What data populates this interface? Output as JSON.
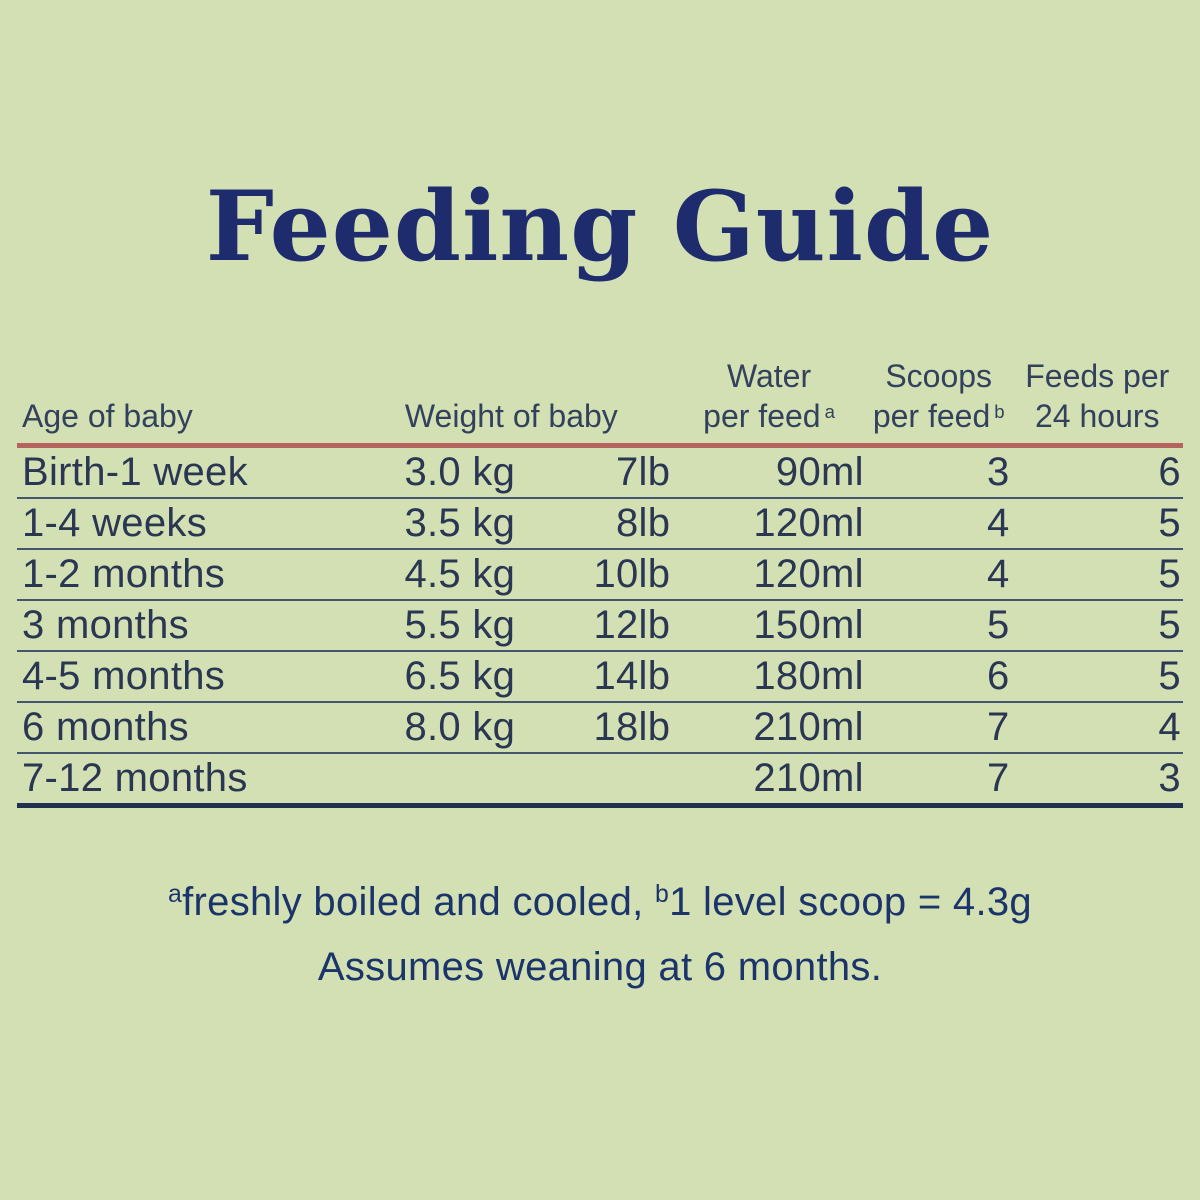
{
  "title": "Feeding Guide",
  "colors": {
    "background": "#d3e0b4",
    "title_navy": "#1e2c6e",
    "header_slate": "#33415c",
    "cell_navy": "#2b3752",
    "rule_red": "#b4635f",
    "row_line": "#45556e",
    "table_edge": "#20304e",
    "footnote_navy": "#1b356b"
  },
  "table": {
    "headers": {
      "age": "Age of baby",
      "weight": "Weight of baby",
      "water_line1": "Water",
      "water_line2": "per feed",
      "water_sup": "a",
      "scoops_line1": "Scoops",
      "scoops_line2": "per feed",
      "scoops_sup": "b",
      "feeds_line1": "Feeds per",
      "feeds_line2": "24 hours"
    },
    "rows": [
      {
        "age": "Birth-1 week",
        "kg": "3.0 kg",
        "lb": "7lb",
        "water": "90ml",
        "scoops": "3",
        "feeds": "6"
      },
      {
        "age": "1-4 weeks",
        "kg": "3.5 kg",
        "lb": "8lb",
        "water": "120ml",
        "scoops": "4",
        "feeds": "5"
      },
      {
        "age": "1-2 months",
        "kg": "4.5 kg",
        "lb": "10lb",
        "water": "120ml",
        "scoops": "4",
        "feeds": "5"
      },
      {
        "age": "3 months",
        "kg": "5.5 kg",
        "lb": "12lb",
        "water": "150ml",
        "scoops": "5",
        "feeds": "5"
      },
      {
        "age": "4-5 months",
        "kg": "6.5 kg",
        "lb": "14lb",
        "water": "180ml",
        "scoops": "6",
        "feeds": "5"
      },
      {
        "age": "6 months",
        "kg": "8.0 kg",
        "lb": "18lb",
        "water": "210ml",
        "scoops": "7",
        "feeds": "4"
      },
      {
        "age": "7-12 months",
        "kg": "",
        "lb": "",
        "water": "210ml",
        "scoops": "7",
        "feeds": "3"
      }
    ]
  },
  "footnotes": {
    "sup_a": "a",
    "line1_a_text": "freshly boiled and cooled, ",
    "sup_b": "b",
    "line1_b_text": "1 level scoop = 4.3g",
    "line2": "Assumes weaning at 6 months."
  }
}
